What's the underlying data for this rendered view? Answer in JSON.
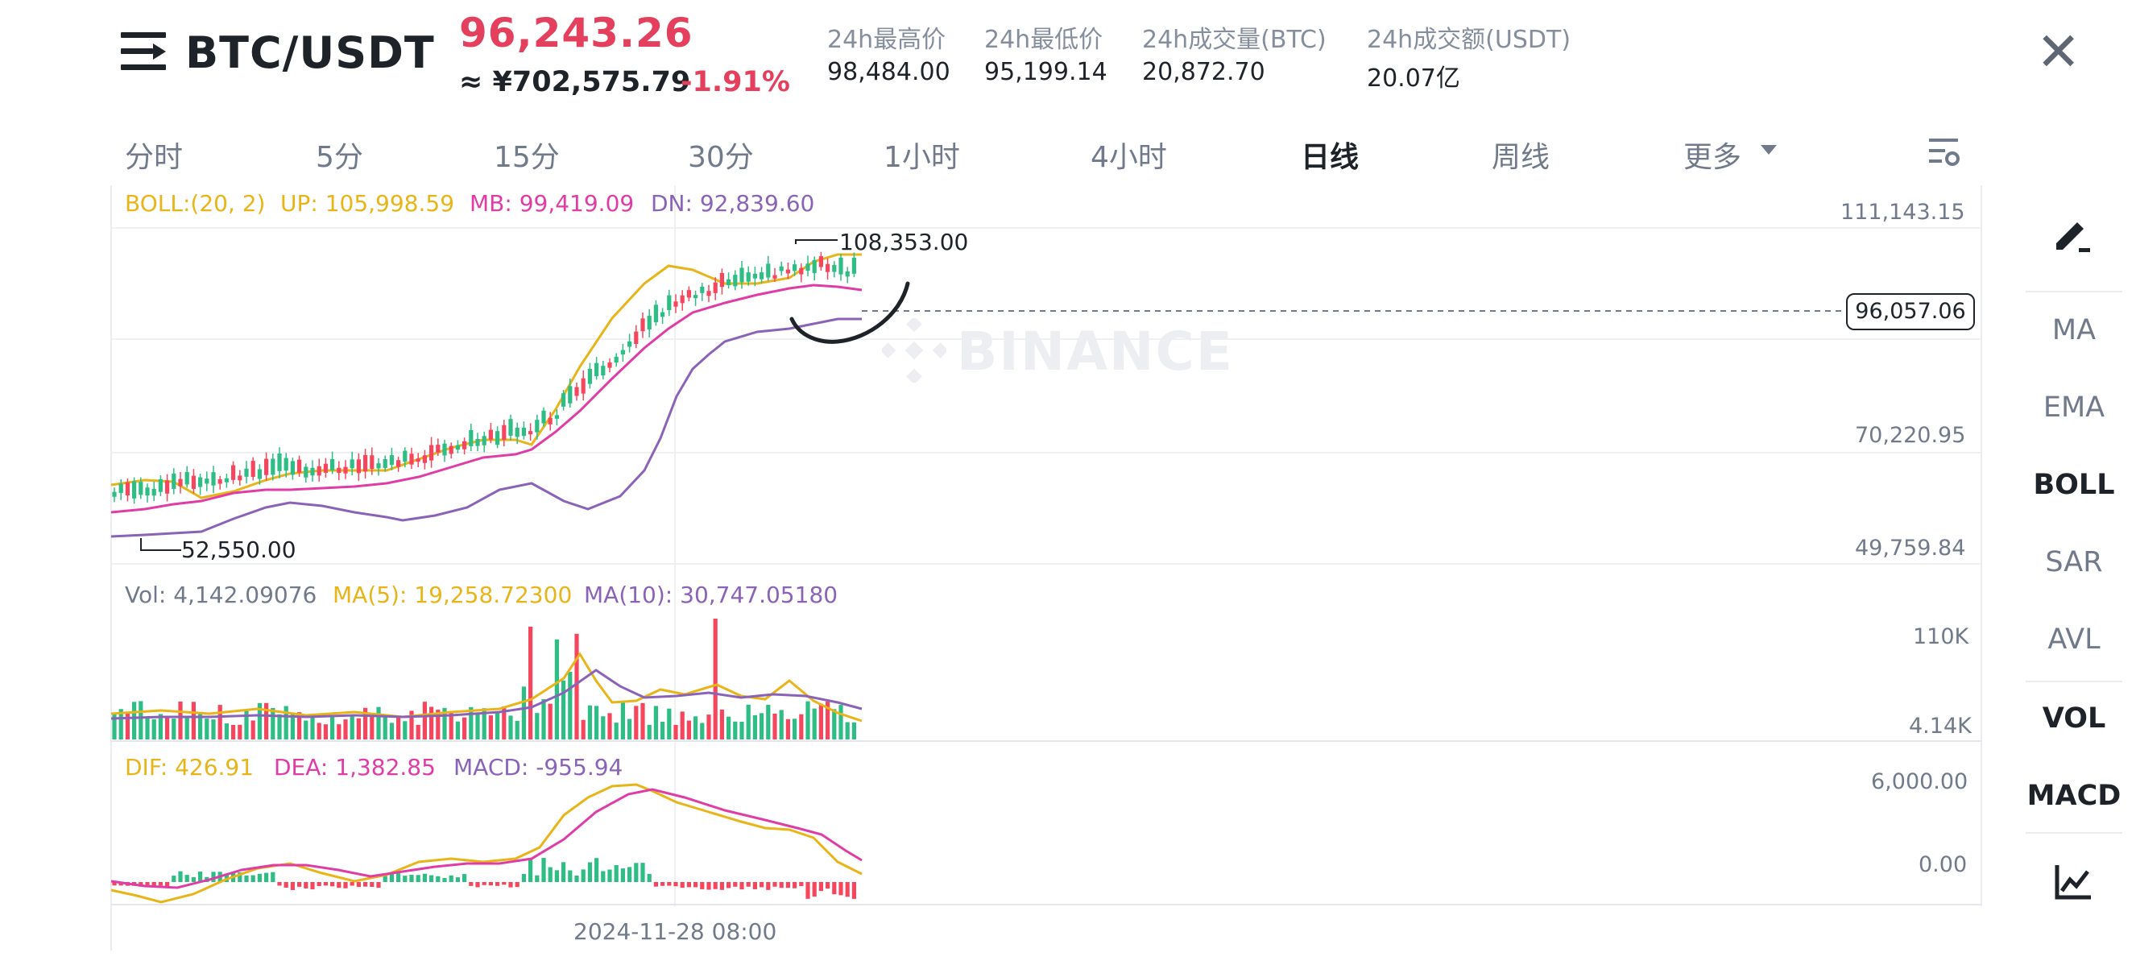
{
  "header": {
    "pair": "BTC/USDT",
    "price": "96,243.26",
    "cny_price": "≈ ¥702,575.79",
    "change_pct": "-1.91%",
    "stats": [
      {
        "label": "24h最高价",
        "value": "98,484.00"
      },
      {
        "label": "24h最低价",
        "value": "95,199.14"
      },
      {
        "label": "24h成交量(BTC)",
        "value": "20,872.70"
      },
      {
        "label": "24h成交额(USDT)",
        "value": "20.07亿"
      }
    ]
  },
  "timeframes": [
    "分时",
    "5分",
    "15分",
    "30分",
    "1小时",
    "4小时",
    "日线",
    "周线",
    "更多"
  ],
  "active_timeframe": "日线",
  "boll": {
    "label": "BOLL:(20, 2)",
    "up": "UP: 105,998.59",
    "mb": "MB: 99,419.09",
    "dn": "DN: 92,839.60"
  },
  "price_axis": [
    "111,143.15",
    "70,220.95",
    "49,759.84"
  ],
  "current_price_tag": "96,057.06",
  "high_label": "108,353.00",
  "low_label": "52,550.00",
  "watermark": "BINANCE",
  "volume": {
    "vol": "Vol: 4,142.09076",
    "ma5": "MA(5): 19,258.72300",
    "ma10": "MA(10): 30,747.05180",
    "axis": [
      "110K",
      "4.14K"
    ]
  },
  "macd": {
    "dif": "DIF: 426.91",
    "dea": "DEA: 1,382.85",
    "macd": "MACD: -955.94",
    "axis": [
      "6,000.00",
      "0.00"
    ]
  },
  "time_label": "2024-11-28 08:00",
  "side_indicators": [
    "MA",
    "EMA",
    "BOLL",
    "SAR",
    "AVL",
    "VOL",
    "MACD"
  ],
  "colors": {
    "up": "#2ebd85",
    "down": "#f6465d",
    "boll_up": "#e8b418",
    "boll_mb": "#e03ca6",
    "boll_dn": "#8a63b8"
  },
  "icons": [
    "menu-icon",
    "close-icon",
    "chart-settings-icon",
    "draw-tool-icon",
    "indicator-chart-icon"
  ]
}
